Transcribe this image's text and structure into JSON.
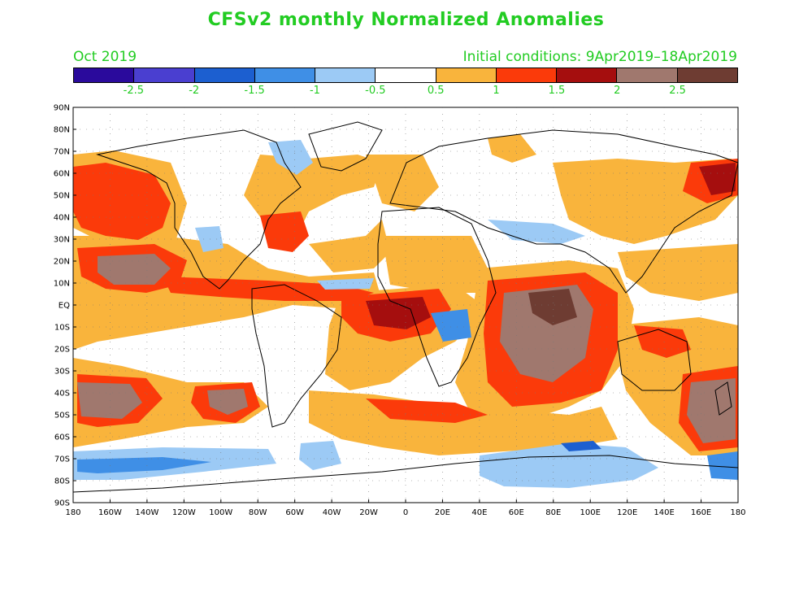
{
  "title": "CFSv2 monthly Normalized Anomalies",
  "valid_month": "Oct 2019",
  "initial_conditions": "Initial conditions: 9Apr2019–18Apr2019",
  "colorbar": {
    "colors": [
      "#2a0a9c",
      "#4a3fd0",
      "#1c5fd0",
      "#3f8fe6",
      "#9ccaf5",
      "#ffffff",
      "#f9b43c",
      "#fb3a0a",
      "#a50e0e",
      "#a0786e",
      "#6e3c32"
    ],
    "labels": [
      "-2.5",
      "-2",
      "-1.5",
      "-1",
      "-0.5",
      "0.5",
      "1",
      "1.5",
      "2",
      "2.5"
    ]
  },
  "axes": {
    "lat_labels": [
      "90N",
      "80N",
      "70N",
      "60N",
      "50N",
      "40N",
      "30N",
      "20N",
      "10N",
      "EQ",
      "10S",
      "20S",
      "30S",
      "40S",
      "50S",
      "60S",
      "70S",
      "80S",
      "90S"
    ],
    "lon_labels": [
      "180",
      "160W",
      "140W",
      "120W",
      "100W",
      "80W",
      "60W",
      "40W",
      "20W",
      "0",
      "20E",
      "40E",
      "60E",
      "80E",
      "100E",
      "120E",
      "140E",
      "160E",
      "180"
    ]
  }
}
